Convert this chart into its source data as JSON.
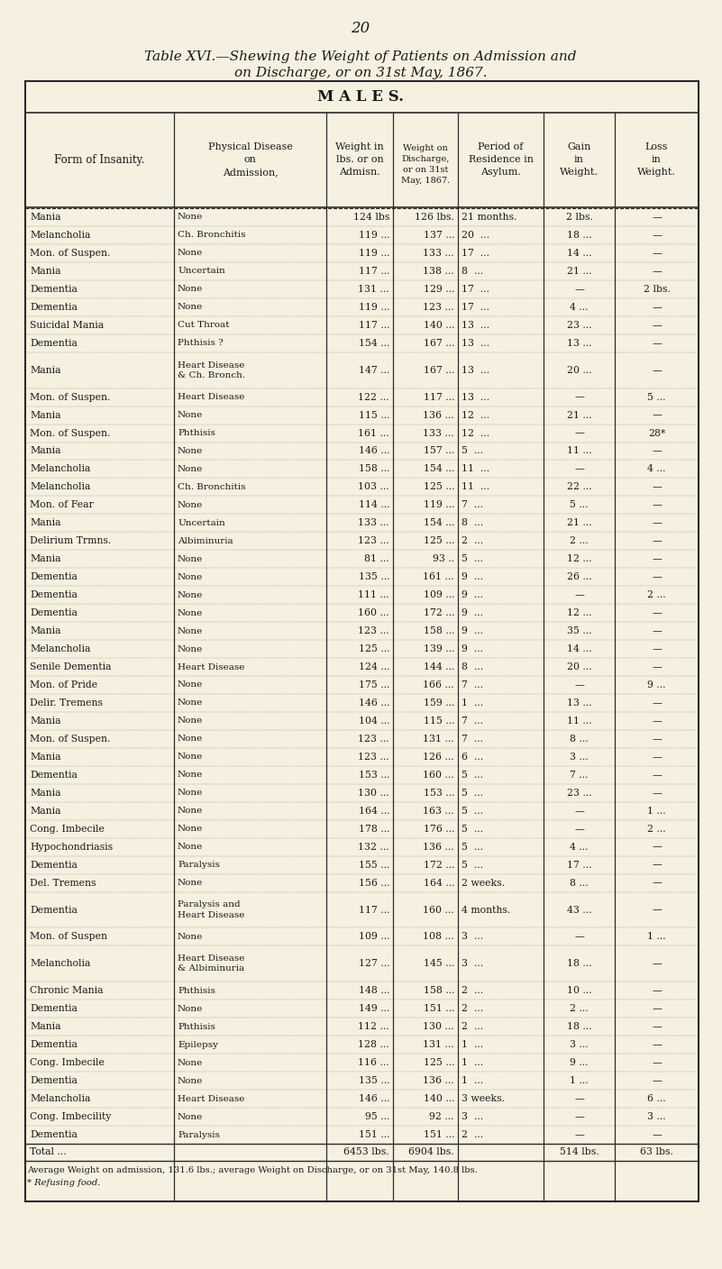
{
  "page_number": "20",
  "title_line1": "Table XVI.—Shewing the Weight of Patients on Admission and",
  "title_line2": "on Discharge, or on 31st May, 1867.",
  "section_header": "M A L E S.",
  "rows": [
    [
      "Mania",
      "None",
      "124 lbs",
      "126 lbs.",
      "21 months.",
      "2 lbs.",
      "—"
    ],
    [
      "Melancholia",
      "Ch. Bronchitis",
      "119 ...",
      "137 ...",
      "20  ...",
      "18 ...",
      "—"
    ],
    [
      "Mon. of Suspen.",
      "None",
      "119 ...",
      "133 ...",
      "17  ...",
      "14 ...",
      "—"
    ],
    [
      "Mania",
      "Uncertain",
      "117 ...",
      "138 ...",
      "8  ...",
      "21 ...",
      "—"
    ],
    [
      "Dementia",
      "None",
      "131 ...",
      "129 ...",
      "17  ...",
      "—",
      "2 lbs."
    ],
    [
      "Dementia",
      "None",
      "119 ...",
      "123 ...",
      "17  ...",
      "4 ...",
      "—"
    ],
    [
      "Suicidal Mania",
      "Cut Throat",
      "117 ...",
      "140 ...",
      "13  ...",
      "23 ...",
      "—"
    ],
    [
      "Dementia",
      "Phthisis ?",
      "154 ...",
      "167 ...",
      "13  ...",
      "13 ...",
      "—"
    ],
    [
      "Mania",
      "Heart Disease\n& Ch. Bronch.",
      "147 ...",
      "167 ...",
      "13  ...",
      "20 ...",
      "—"
    ],
    [
      "Mon. of Suspen.",
      "Heart Disease",
      "122 ...",
      "117 ...",
      "13  ...",
      "—",
      "5 ..."
    ],
    [
      "Mania",
      "None",
      "115 ...",
      "136 ...",
      "12  ...",
      "21 ...",
      "—"
    ],
    [
      "Mon. of Suspen.",
      "Phthisis",
      "161 ...",
      "133 ...",
      "12  ...",
      "—",
      "28*"
    ],
    [
      "Mania",
      "None",
      "146 ...",
      "157 ...",
      "5  ...",
      "11 ...",
      "—"
    ],
    [
      "Melancholia",
      "None",
      "158 ...",
      "154 ...",
      "11  ...",
      "—",
      "4 ..."
    ],
    [
      "Melancholia",
      "Ch. Bronchitis",
      "103 ...",
      "125 ...",
      "11  ...",
      "22 ...",
      "—"
    ],
    [
      "Mon. of Fear",
      "None",
      "114 ...",
      "119 ...",
      "7  ...",
      "5 ...",
      "—"
    ],
    [
      "Mania",
      "Uncertain",
      "133 ...",
      "154 ...",
      "8  ...",
      "21 ...",
      "—"
    ],
    [
      "Delirium Trmns.",
      "Albiminuria",
      "123 ...",
      "125 ...",
      "2  ...",
      "2 ...",
      "—"
    ],
    [
      "Mania",
      "None",
      "81 ...",
      "93 ..",
      "5  ...",
      "12 ...",
      "—"
    ],
    [
      "Dementia",
      "None",
      "135 ...",
      "161 ...",
      "9  ...",
      "26 ...",
      "—"
    ],
    [
      "Dementia",
      "None",
      "111 ...",
      "109 ...",
      "9  ...",
      "—",
      "2 ..."
    ],
    [
      "Dementia",
      "None",
      "160 ...",
      "172 ...",
      "9  ...",
      "12 ...",
      "—"
    ],
    [
      "Mania",
      "None",
      "123 ...",
      "158 ...",
      "9  ...",
      "35 ...",
      "—"
    ],
    [
      "Melancholia",
      "None",
      "125 ...",
      "139 ...",
      "9  ...",
      "14 ...",
      "—"
    ],
    [
      "Senile Dementia",
      "Heart Disease",
      "124 ...",
      "144 ...",
      "8  ...",
      "20 ...",
      "—"
    ],
    [
      "Mon. of Pride",
      "None",
      "175 ...",
      "166 ...",
      "7  ...",
      "—",
      "9 ..."
    ],
    [
      "Delir. Tremens",
      "None",
      "146 ...",
      "159 ...",
      "1  ...",
      "13 ...",
      "—"
    ],
    [
      "Mania",
      "None",
      "104 ...",
      "115 ...",
      "7  ...",
      "11 ...",
      "—"
    ],
    [
      "Mon. of Suspen.",
      "None",
      "123 ...",
      "131 ...",
      "7  ...",
      "8 ...",
      "—"
    ],
    [
      "Mania",
      "None",
      "123 ...",
      "126 ...",
      "6  ...",
      "3 ...",
      "—"
    ],
    [
      "Dementia",
      "None",
      "153 ...",
      "160 ...",
      "5  ...",
      "7 ...",
      "—"
    ],
    [
      "Mania",
      "None",
      "130 ...",
      "153 ...",
      "5  ...",
      "23 ...",
      "—"
    ],
    [
      "Mania",
      "None",
      "164 ...",
      "163 ...",
      "5  ...",
      "—",
      "1 ..."
    ],
    [
      "Cong. Imbecile",
      "None",
      "178 ...",
      "176 ...",
      "5  ...",
      "—",
      "2 ..."
    ],
    [
      "Hypochondriasis",
      "None",
      "132 ...",
      "136 ...",
      "5  ...",
      "4 ...",
      "—"
    ],
    [
      "Dementia",
      "Paralysis",
      "155 ...",
      "172 ...",
      "5  ...",
      "17 ...",
      "—"
    ],
    [
      "Del. Tremens",
      "None",
      "156 ...",
      "164 ...",
      "2 weeks.",
      "8 ...",
      "—"
    ],
    [
      "Dementia",
      "Paralysis and\nHeart Disease",
      "117 ...",
      "160 ...",
      "4 months.",
      "43 ...",
      "—"
    ],
    [
      "Mon. of Suspen",
      "None",
      "109 ...",
      "108 ...",
      "3  ...",
      "—",
      "1 ..."
    ],
    [
      "Melancholia",
      "Heart Disease\n& Albiminuria",
      "127 ...",
      "145 ...",
      "3  ...",
      "18 ...",
      "—"
    ],
    [
      "Chronic Mania",
      "Phthisis",
      "148 ...",
      "158 ...",
      "2  ...",
      "10 ...",
      "—"
    ],
    [
      "Dementia",
      "None",
      "149 ...",
      "151 ...",
      "2  ...",
      "2 ...",
      "—"
    ],
    [
      "Mania",
      "Phthisis",
      "112 ...",
      "130 ...",
      "2  ...",
      "18 ...",
      "—"
    ],
    [
      "Dementia",
      "Epilepsy",
      "128 ...",
      "131 ...",
      "1  ...",
      "3 ...",
      "—"
    ],
    [
      "Cong. Imbecile",
      "None",
      "116 ...",
      "125 ...",
      "1  ...",
      "9 ...",
      "—"
    ],
    [
      "Dementia",
      "None",
      "135 ...",
      "136 ...",
      "1  ...",
      "1 ...",
      "—"
    ],
    [
      "Melancholia",
      "Heart Disease",
      "146 ...",
      "140 ...",
      "3 weeks.",
      "—",
      "6 ..."
    ],
    [
      "Cong. Imbecility",
      "None",
      "95 ...",
      "92 ...",
      "3  ...",
      "—",
      "3 ..."
    ],
    [
      "Dementia",
      "Paralysis",
      "151 ...",
      "151 ...",
      "2  ...",
      "—",
      "—"
    ]
  ],
  "total_row": [
    "Total ...",
    "",
    "6453 lbs.",
    "6904 lbs.",
    "",
    "514 lbs.",
    "63 lbs."
  ],
  "footnote1": "Average Weight on admission, 131.6 lbs.; average Weight on Discharge, or on 31st May, 140.8 lbs.",
  "footnote2": "* Refusing food.",
  "bg_color": "#f5f0e0",
  "text_color": "#1a1a1a",
  "line_color": "#2a2a2a",
  "figsize": [
    8.01,
    14.08
  ],
  "dpi": 100
}
